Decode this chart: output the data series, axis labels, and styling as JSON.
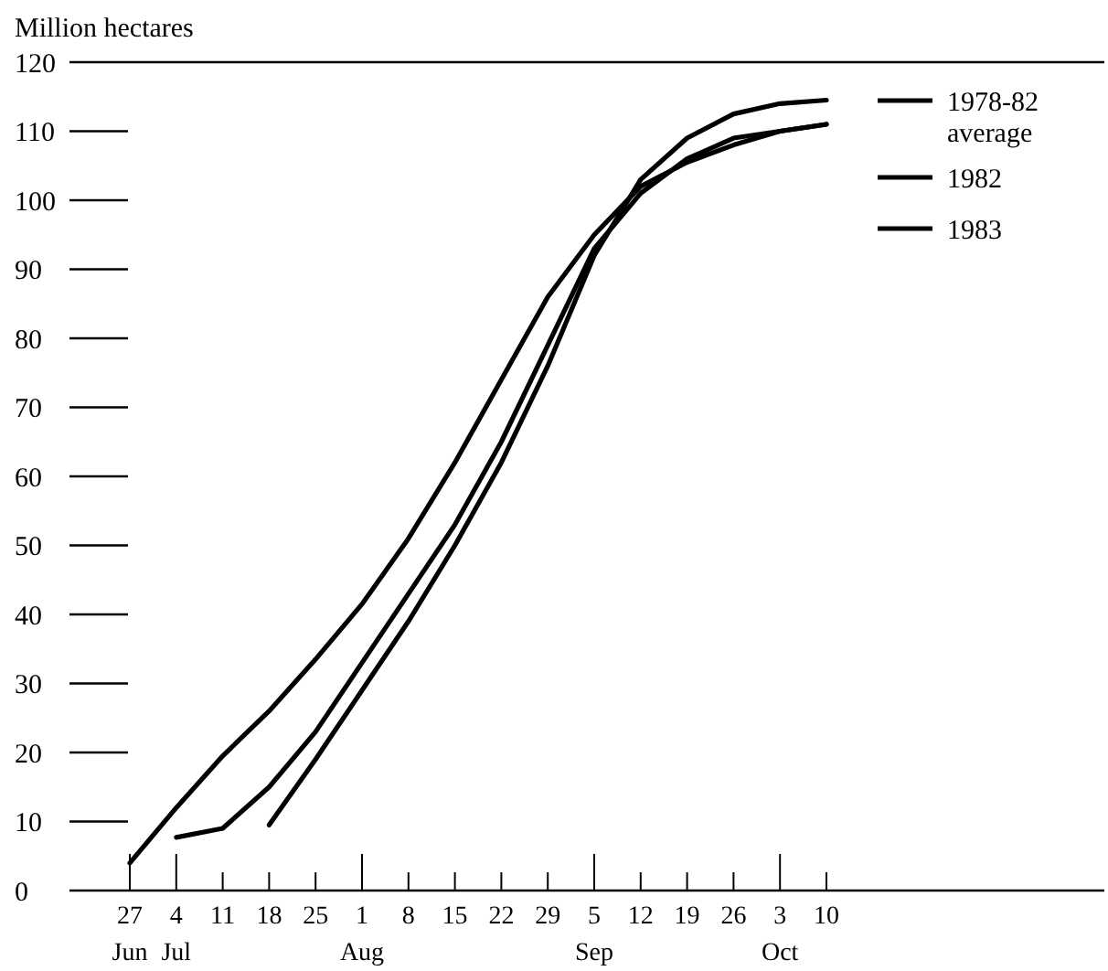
{
  "chart_data": {
    "type": "line",
    "ylabel": "Million hectares",
    "categories": [
      "27 Jun",
      "4 Jul",
      "11",
      "18",
      "25",
      "1 Aug",
      "8",
      "15",
      "22",
      "29",
      "5 Sep",
      "12",
      "19",
      "26",
      "3 Oct",
      "10"
    ],
    "series": [
      {
        "name": "1978-82 average",
        "color": "#000000",
        "values": [
          4,
          12,
          19.5,
          26,
          33.5,
          41.5,
          51,
          62,
          74,
          86,
          95,
          102,
          105.5,
          108,
          110,
          111
        ]
      },
      {
        "name": "1982",
        "color": "#000000",
        "values": [
          null,
          7.7,
          9,
          15,
          23,
          33,
          43,
          53,
          65,
          79,
          93,
          101,
          106,
          109,
          110,
          111
        ]
      },
      {
        "name": "1983",
        "color": "#000000",
        "values": [
          null,
          null,
          null,
          9.5,
          19,
          29,
          39,
          50,
          62,
          76,
          92,
          103,
          109,
          112.5,
          114,
          114.5
        ]
      }
    ],
    "ylim": [
      0,
      120
    ],
    "yticks": [
      0,
      10,
      20,
      30,
      40,
      50,
      60,
      70,
      80,
      90,
      100,
      110,
      120
    ],
    "legend": "top right",
    "marker": "none",
    "line_style": "solid"
  }
}
